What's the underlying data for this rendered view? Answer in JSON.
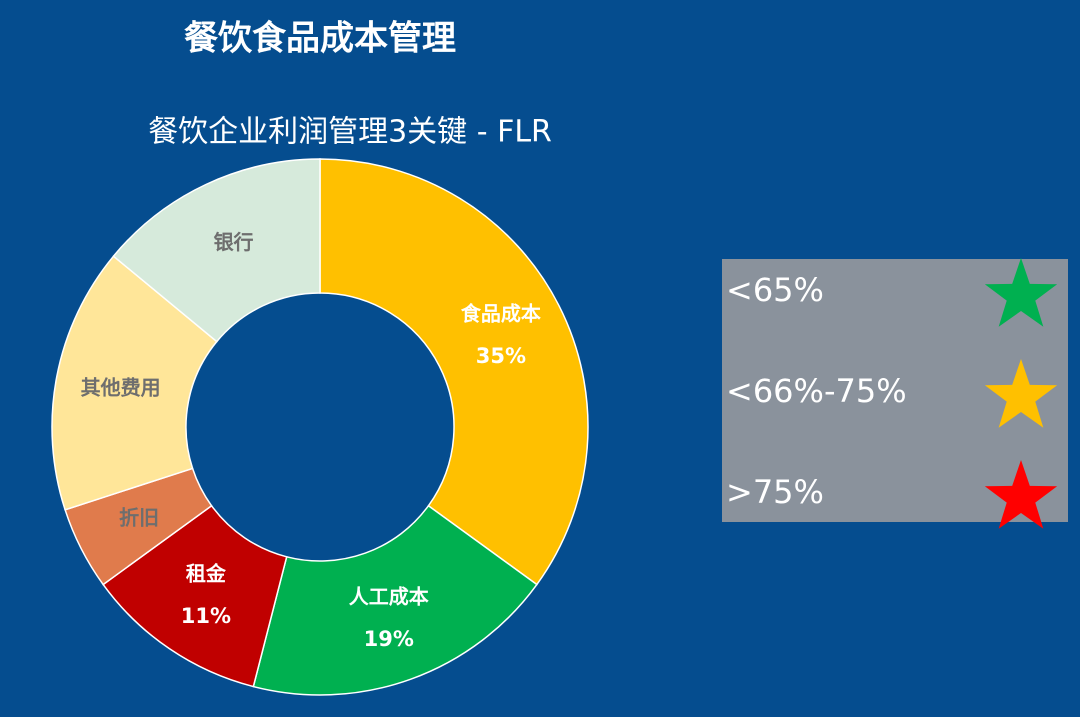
{
  "chart_data": {
    "type": "donut",
    "title": "餐饮食品成本管理",
    "subtitle": "餐饮企业利润管理3关键 - FLR",
    "categories": [
      "食品成本",
      "人工成本",
      "租金",
      "折旧",
      "其他费用",
      "银行"
    ],
    "values": [
      35,
      19,
      11,
      5,
      16,
      14
    ],
    "value_labels": [
      "35%",
      "19%",
      "11%",
      null,
      null,
      null
    ],
    "colors": [
      "#ffc000",
      "#00b050",
      "#c00000",
      "#e07b4c",
      "#ffe699",
      "#d6eadb"
    ],
    "label_colors": [
      "#ffffff",
      "#ffffff",
      "#ffffff",
      "#6e6e6e",
      "#6e6e6e",
      "#6e6e6e"
    ],
    "rating_legend": [
      {
        "label": "<65%",
        "color": "#00b050"
      },
      {
        "label": "<66%-75%",
        "color": "#ffc000"
      },
      {
        "label": ">75%",
        "color": "#ff0000"
      }
    ]
  }
}
